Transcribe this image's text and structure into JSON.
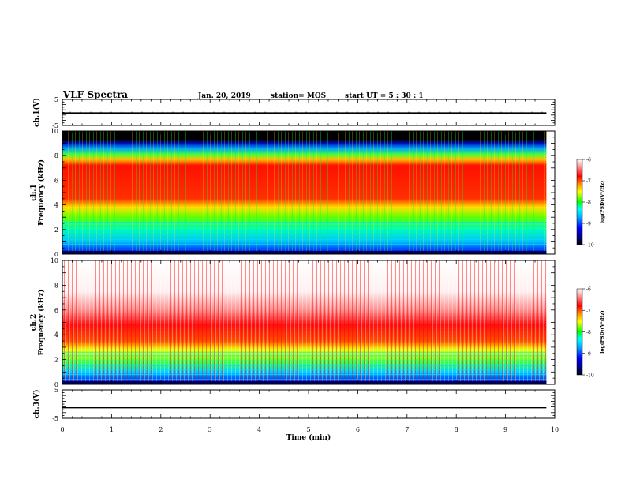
{
  "header": {
    "title": "VLF Spectra",
    "date": "Jan. 20, 2019",
    "station": "station= MOS",
    "start": "start  UT  =   5  : 30 : 1"
  },
  "chart_data": [
    {
      "type": "line",
      "panel": "ch1-voltage",
      "ylabel": "ch.1(V)",
      "ylim": [
        -5,
        5
      ],
      "yticks": [
        "5",
        "-5"
      ],
      "xlim": [
        0,
        10
      ],
      "series": [
        {
          "x": [
            0,
            9.83
          ],
          "y": [
            -0.2,
            -0.2
          ]
        }
      ]
    },
    {
      "type": "heatmap",
      "panel": "ch1-spectrogram",
      "ylabel": [
        "ch.1",
        "Frequency (kHz)"
      ],
      "ylim": [
        0,
        10
      ],
      "yticks": [
        "0",
        "2",
        "4",
        "6",
        "8",
        "10"
      ],
      "xlim": [
        0,
        10
      ],
      "colorbar": {
        "label": "log(PSD)(V²/Hz)",
        "range": [
          -10,
          -6
        ],
        "ticks": [
          "-6",
          "-7",
          "-8",
          "-9",
          "-10"
        ]
      },
      "bands_log_psd": [
        {
          "f_range": [
            0,
            0.3
          ],
          "value": -9.5
        },
        {
          "f_range": [
            0.3,
            3
          ],
          "value": -8.5
        },
        {
          "f_range": [
            3,
            4
          ],
          "value": -7.8
        },
        {
          "f_range": [
            4,
            7.7
          ],
          "value": -6.8
        },
        {
          "f_range": [
            7.7,
            8.8
          ],
          "value": -8.0
        },
        {
          "f_range": [
            8.8,
            9.5
          ],
          "value": -9.2
        },
        {
          "f_range": [
            9.5,
            10
          ],
          "value": -10
        }
      ]
    },
    {
      "type": "heatmap",
      "panel": "ch2-spectrogram",
      "ylabel": [
        "ch.2",
        "Frequency (kHz)"
      ],
      "ylim": [
        0,
        10
      ],
      "yticks": [
        "0",
        "2",
        "4",
        "6",
        "8",
        "10"
      ],
      "xlim": [
        0,
        10
      ],
      "colorbar": {
        "label": "log(PSD)(V²/Hz)",
        "range": [
          -10,
          -6
        ],
        "ticks": [
          "-6",
          "-7",
          "-8",
          "-9",
          "-10"
        ]
      },
      "bands_log_psd": [
        {
          "f_range": [
            0,
            0.3
          ],
          "value": -9.5
        },
        {
          "f_range": [
            0.3,
            3
          ],
          "value": -8.3
        },
        {
          "f_range": [
            3,
            5
          ],
          "value": -7.0
        },
        {
          "f_range": [
            5,
            10
          ],
          "value": -6.2
        }
      ]
    },
    {
      "type": "line",
      "panel": "ch3-voltage",
      "ylabel": "ch.3(V)",
      "xlabel": "Time (min)",
      "ylim": [
        -5,
        5
      ],
      "yticks": [
        "5",
        "-5"
      ],
      "xlim": [
        0,
        10
      ],
      "xticks": [
        "0",
        "1",
        "2",
        "3",
        "4",
        "5",
        "6",
        "7",
        "8",
        "9",
        "10"
      ],
      "series": [
        {
          "x": [
            0,
            9.83
          ],
          "y": [
            -1.3,
            -1.3
          ]
        }
      ]
    }
  ]
}
